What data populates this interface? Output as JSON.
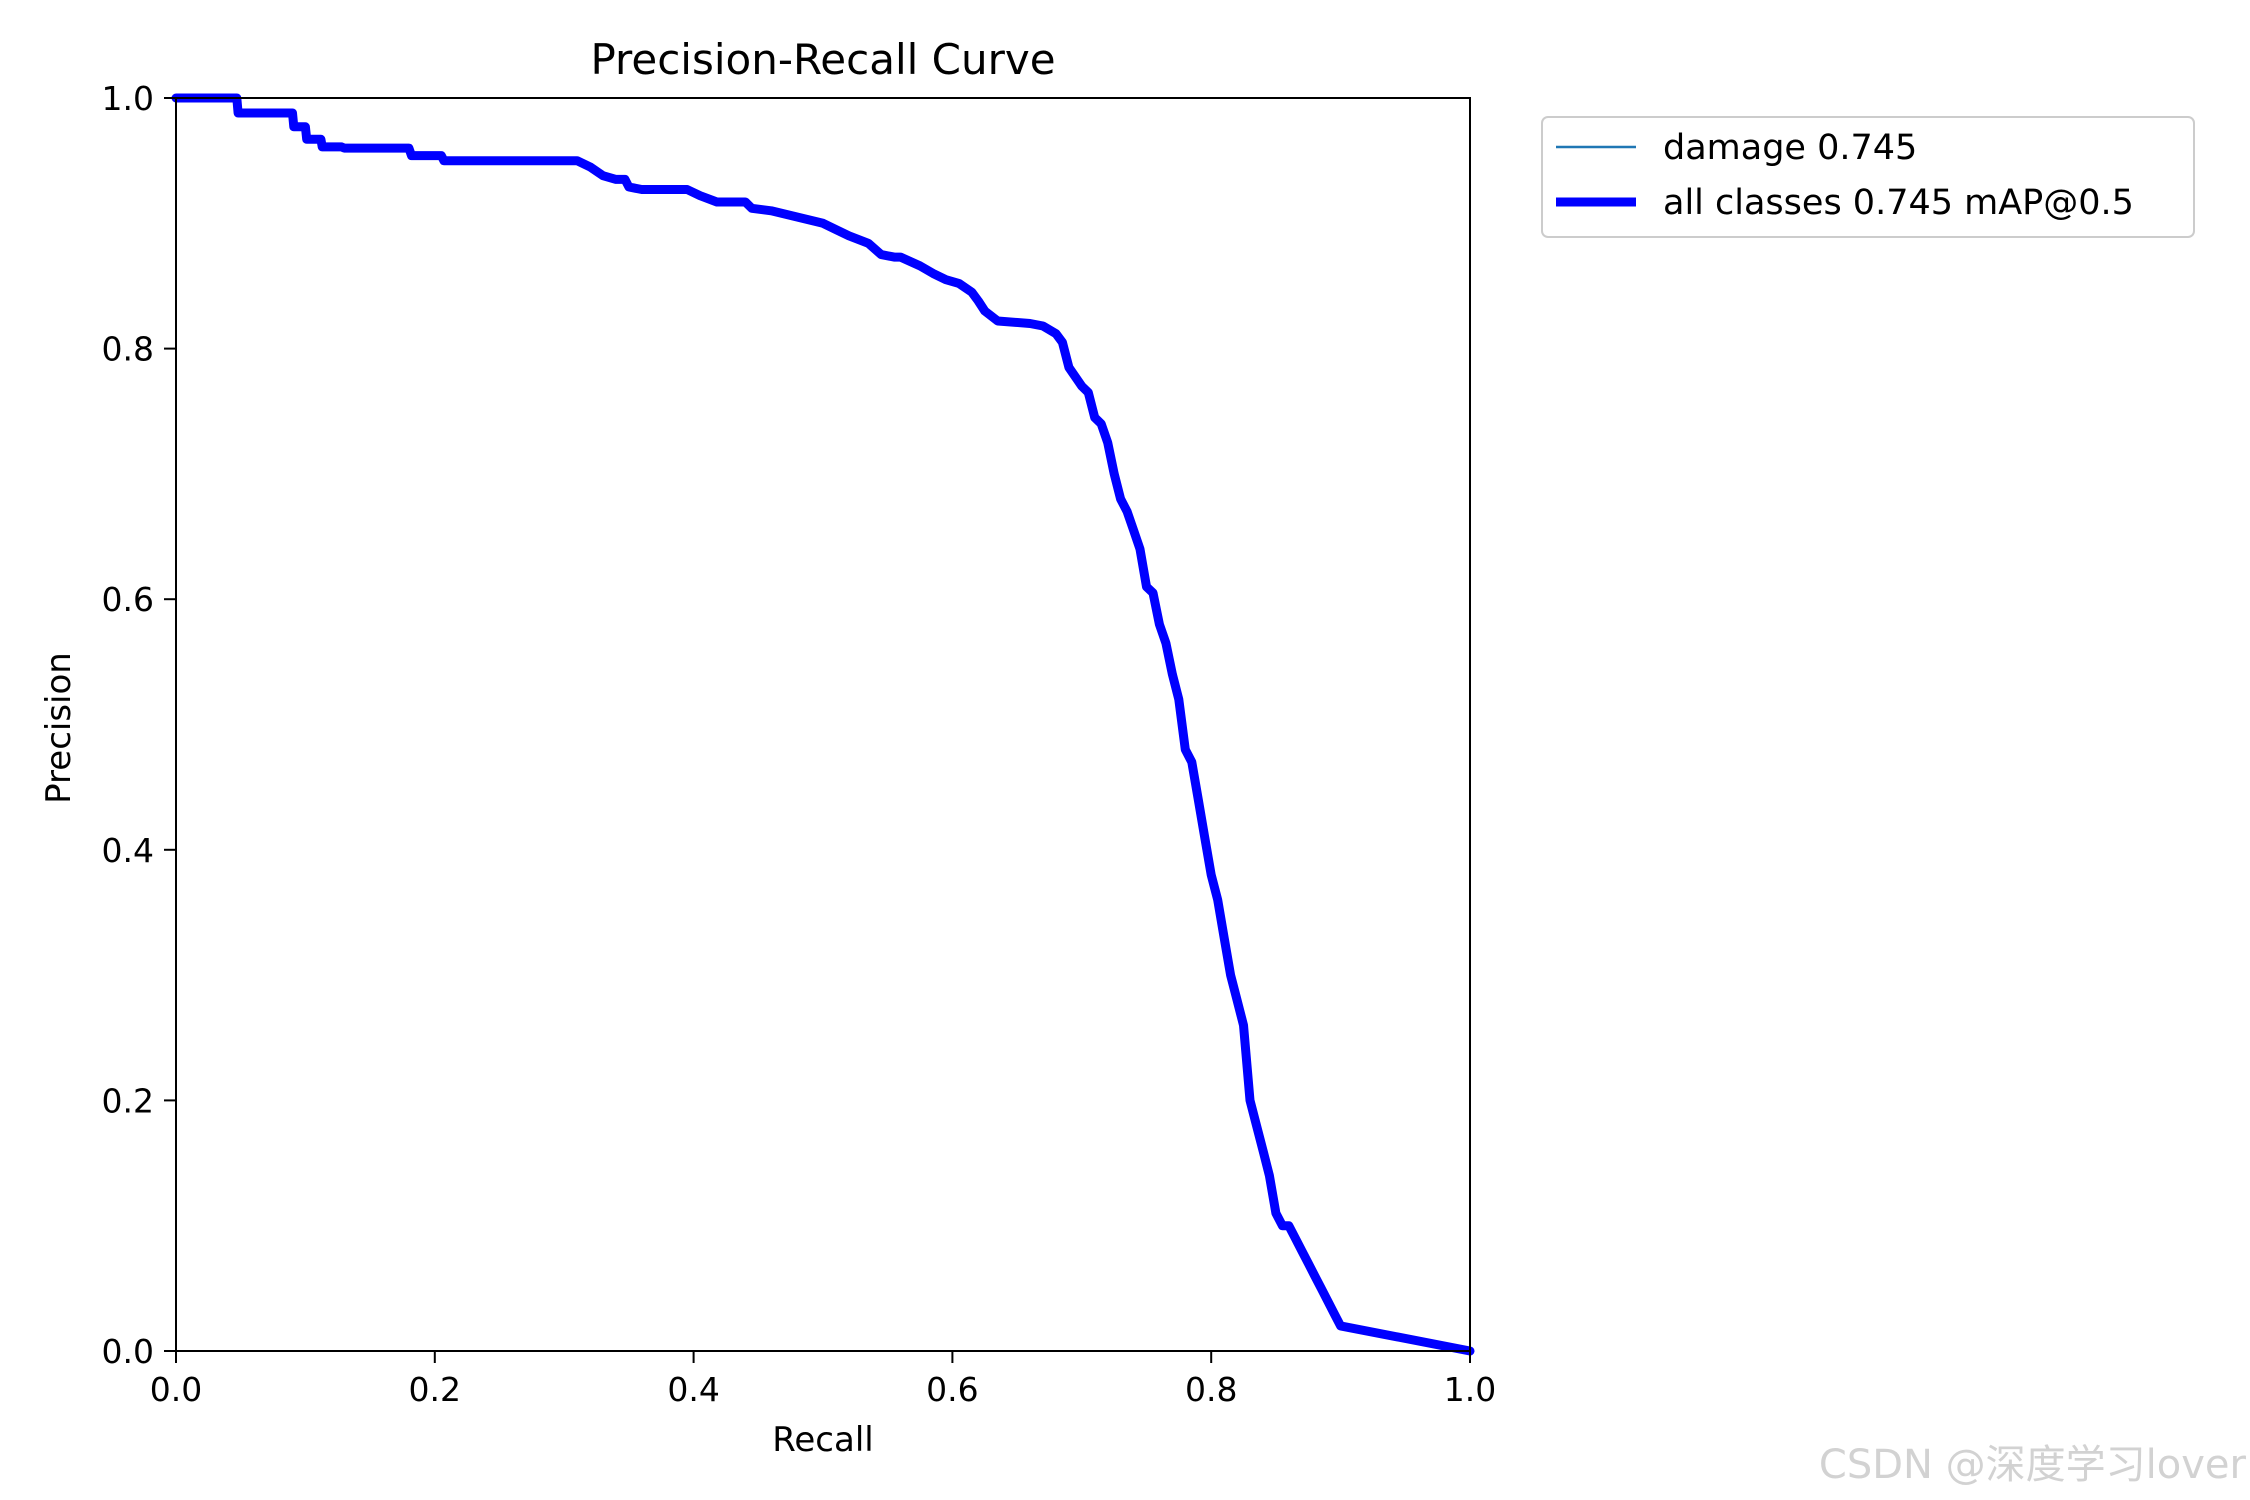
{
  "chart_data": {
    "type": "line",
    "title": "Precision-Recall Curve",
    "xlabel": "Recall",
    "ylabel": "Precision",
    "xlim": [
      0,
      1
    ],
    "ylim": [
      0,
      1
    ],
    "xticks": [
      "0.0",
      "0.2",
      "0.4",
      "0.6",
      "0.8",
      "1.0"
    ],
    "yticks": [
      "0.0",
      "0.2",
      "0.4",
      "0.6",
      "0.8",
      "1.0"
    ],
    "grid": false,
    "legend_position": "outside-top-right",
    "series": [
      {
        "name": "damage 0.745",
        "color": "#1f77b4",
        "line_style": "thin",
        "x": [],
        "y": []
      },
      {
        "name": "all classes 0.745 mAP@0.5",
        "color": "#0000ff",
        "line_style": "thick",
        "x": [
          0.0,
          0.047,
          0.048,
          0.09,
          0.091,
          0.1,
          0.101,
          0.112,
          0.113,
          0.128,
          0.13,
          0.18,
          0.182,
          0.205,
          0.207,
          0.31,
          0.32,
          0.33,
          0.34,
          0.347,
          0.35,
          0.36,
          0.395,
          0.405,
          0.418,
          0.44,
          0.445,
          0.46,
          0.48,
          0.5,
          0.51,
          0.52,
          0.535,
          0.545,
          0.555,
          0.56,
          0.575,
          0.585,
          0.595,
          0.605,
          0.615,
          0.62,
          0.625,
          0.635,
          0.66,
          0.67,
          0.68,
          0.685,
          0.69,
          0.7,
          0.705,
          0.71,
          0.715,
          0.72,
          0.725,
          0.73,
          0.735,
          0.74,
          0.745,
          0.75,
          0.755,
          0.76,
          0.765,
          0.77,
          0.775,
          0.78,
          0.785,
          0.79,
          0.795,
          0.8,
          0.805,
          0.81,
          0.815,
          0.82,
          0.825,
          0.83,
          0.835,
          0.84,
          0.845,
          0.85,
          0.855,
          0.86,
          0.865,
          0.87,
          0.875,
          0.88,
          0.885,
          0.89,
          0.895,
          0.9,
          1.0
        ],
        "y": [
          1.0,
          1.0,
          0.988,
          0.988,
          0.977,
          0.977,
          0.967,
          0.967,
          0.961,
          0.961,
          0.96,
          0.96,
          0.954,
          0.954,
          0.95,
          0.95,
          0.945,
          0.938,
          0.935,
          0.935,
          0.929,
          0.927,
          0.927,
          0.922,
          0.917,
          0.917,
          0.912,
          0.91,
          0.905,
          0.9,
          0.895,
          0.89,
          0.884,
          0.875,
          0.873,
          0.873,
          0.866,
          0.86,
          0.855,
          0.852,
          0.845,
          0.838,
          0.83,
          0.822,
          0.82,
          0.818,
          0.812,
          0.805,
          0.785,
          0.77,
          0.765,
          0.745,
          0.74,
          0.725,
          0.7,
          0.68,
          0.67,
          0.655,
          0.64,
          0.61,
          0.605,
          0.58,
          0.565,
          0.54,
          0.52,
          0.48,
          0.47,
          0.44,
          0.41,
          0.38,
          0.36,
          0.33,
          0.3,
          0.28,
          0.26,
          0.2,
          0.18,
          0.16,
          0.14,
          0.11,
          0.1,
          0.1,
          0.09,
          0.08,
          0.07,
          0.06,
          0.05,
          0.04,
          0.03,
          0.02,
          0.0
        ]
      }
    ],
    "watermark": "CSDN @深度学习lover"
  }
}
